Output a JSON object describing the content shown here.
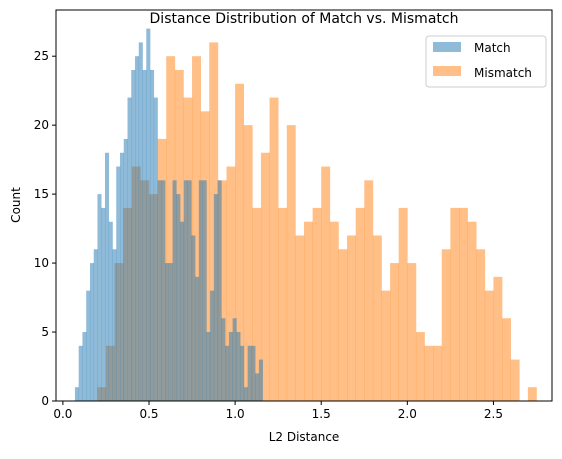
{
  "chart_data": {
    "type": "histogram",
    "title": "Distance Distribution of Match vs. Mismatch",
    "xlabel": "L2 Distance",
    "ylabel": "Count",
    "xlim": [
      -0.04,
      2.84
    ],
    "ylim": [
      0,
      28.35
    ],
    "xticks": [
      0.0,
      0.5,
      1.0,
      1.5,
      2.0,
      2.5
    ],
    "yticks": [
      0,
      5,
      10,
      15,
      20,
      25
    ],
    "grid": false,
    "legend_position": "top-right",
    "series": [
      {
        "name": "Match",
        "color": "#1f77b4",
        "alpha": 0.5,
        "bin_start": 0.07,
        "bin_width": 0.0218,
        "counts": [
          1,
          4,
          5,
          8,
          10,
          11,
          15,
          14,
          18,
          13,
          11,
          17,
          18,
          19,
          22,
          24,
          25,
          26,
          24,
          27,
          24,
          22,
          16,
          16,
          10,
          10,
          16,
          15,
          13,
          16,
          16,
          12,
          9,
          16,
          16,
          5,
          8,
          15,
          16,
          6,
          4,
          5,
          6,
          5,
          4,
          1,
          4,
          4,
          2,
          3
        ]
      },
      {
        "name": "Mismatch",
        "color": "#ff7f0e",
        "alpha": 0.5,
        "bin_start": 0.2,
        "bin_width": 0.05,
        "counts": [
          1,
          4,
          10,
          14,
          17,
          16,
          15,
          19,
          25,
          24,
          22,
          25,
          21,
          26,
          16,
          17,
          23,
          20,
          14,
          18,
          22,
          14,
          20,
          12,
          13,
          14,
          17,
          13,
          11,
          12,
          14,
          16,
          12,
          8,
          10,
          14,
          10,
          5,
          4,
          4,
          11,
          14,
          14,
          13,
          11,
          8,
          9,
          6,
          3,
          0,
          1
        ]
      }
    ]
  }
}
